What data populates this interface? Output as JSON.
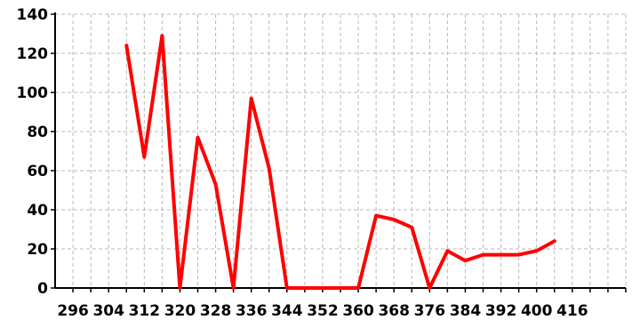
{
  "chart_data": {
    "type": "line",
    "title": "",
    "xlabel": "",
    "ylabel": "",
    "xlim": [
      292,
      420
    ],
    "ylim": [
      0,
      140
    ],
    "x_ticks": [
      296,
      304,
      312,
      320,
      328,
      336,
      344,
      352,
      360,
      368,
      376,
      384,
      392,
      400,
      416
    ],
    "x_gridlines": [
      296,
      300,
      304,
      308,
      312,
      316,
      320,
      324,
      328,
      332,
      336,
      340,
      344,
      348,
      352,
      356,
      360,
      364,
      368,
      372,
      376,
      380,
      384,
      388,
      392,
      396,
      400,
      404,
      408,
      412,
      416,
      420
    ],
    "y_ticks": [
      0,
      20,
      40,
      60,
      80,
      100,
      120,
      140
    ],
    "grid": true,
    "legend": "none",
    "series": [
      {
        "color": "#ff0000",
        "x": [
          308,
          312,
          316,
          320,
          324,
          328,
          332,
          336,
          340,
          344,
          348,
          352,
          356,
          360,
          364,
          368,
          372,
          376,
          380,
          384,
          388,
          392,
          396,
          400,
          404
        ],
        "y": [
          124,
          67,
          129,
          0,
          77,
          53,
          0,
          97,
          61,
          0,
          0,
          0,
          0,
          0,
          37,
          35,
          31,
          0,
          19,
          14,
          17,
          17,
          17,
          19,
          24
        ]
      }
    ]
  }
}
